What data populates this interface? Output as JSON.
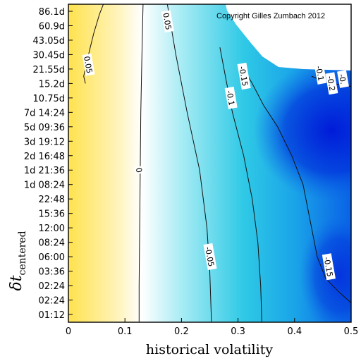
{
  "chart_data": {
    "type": "heatmap",
    "subtype": "filled-contour",
    "title": "",
    "copyright": "Copyright Gilles Zumbach 2012",
    "xlabel": "historical volatility",
    "ylabel_main": "δt",
    "ylabel_sub": "centered",
    "xlim": [
      0,
      0.5
    ],
    "x_ticks": [
      "0",
      "0.1",
      "0.2",
      "0.3",
      "0.4",
      "0.5"
    ],
    "y_tick_labels": [
      "01:12",
      "02:24",
      "02:24",
      "03:36",
      "06:00",
      "08:24",
      "12:00",
      "15:36",
      "22:48",
      "1d 08:24",
      "1d 21:36",
      "2d 16:48",
      "3d 19:12",
      "5d 09:36",
      "7d 14:24",
      "10.75d",
      "15.2d",
      "21.55d",
      "30.45d",
      "43.05d",
      "60.9d",
      "86.1d"
    ],
    "colorscale": [
      "#ffe04a",
      "#fff8d8",
      "#ffffff",
      "#9ee7f2",
      "#27c7e4",
      "#0c74e8",
      "#0018d8"
    ],
    "contour_levels": [
      0.05,
      0,
      -0.05,
      -0.1,
      -0.15,
      -0.2
    ],
    "contour_labels": [
      {
        "text": "0.05",
        "x": 0.035,
        "y": 17.3
      },
      {
        "text": "0.05",
        "x": 0.175,
        "y": 20.3
      },
      {
        "text": "0",
        "x": 0.125,
        "y": 10.0
      },
      {
        "text": "-0.05",
        "x": 0.25,
        "y": 4.0
      },
      {
        "text": "-0.1",
        "x": 0.287,
        "y": 15.0
      },
      {
        "text": "-0.15",
        "x": 0.31,
        "y": 16.5
      },
      {
        "text": "-0.15",
        "x": 0.46,
        "y": 3.3
      },
      {
        "text": "-0.1",
        "x": 0.445,
        "y": 16.7
      },
      {
        "text": "-0.2",
        "x": 0.465,
        "y": 16.0
      },
      {
        "text": "-0.",
        "x": 0.485,
        "y": 16.3
      }
    ],
    "contours": [
      {
        "level": 0.05,
        "points": [
          [
            0.062,
            21.5
          ],
          [
            0.055,
            20.8
          ],
          [
            0.045,
            19.5
          ],
          [
            0.038,
            18.4
          ],
          [
            0.032,
            17.4
          ],
          [
            0.027,
            16.5
          ],
          [
            0.03,
            16.0
          ]
        ]
      },
      {
        "level": 0,
        "points": [
          [
            0.132,
            21.5
          ],
          [
            0.13,
            18
          ],
          [
            0.128,
            14
          ],
          [
            0.127,
            10
          ],
          [
            0.126,
            6
          ],
          [
            0.125,
            2
          ],
          [
            0.125,
            -0.5
          ]
        ]
      },
      {
        "level": -0.05,
        "points": [
          [
            0.175,
            21.5
          ],
          [
            0.19,
            18
          ],
          [
            0.21,
            14
          ],
          [
            0.232,
            10
          ],
          [
            0.245,
            6
          ],
          [
            0.25,
            3
          ],
          [
            0.253,
            -0.5
          ]
        ]
      },
      {
        "level": -0.1,
        "points": [
          [
            0.268,
            18.5
          ],
          [
            0.28,
            16
          ],
          [
            0.29,
            14
          ],
          [
            0.31,
            11
          ],
          [
            0.325,
            8
          ],
          [
            0.335,
            5
          ],
          [
            0.34,
            2
          ],
          [
            0.342,
            -0.5
          ]
        ]
      },
      {
        "level": -0.15,
        "points": [
          [
            0.31,
            17
          ],
          [
            0.325,
            16
          ],
          [
            0.345,
            14.5
          ],
          [
            0.37,
            13
          ],
          [
            0.395,
            11
          ],
          [
            0.415,
            9
          ],
          [
            0.43,
            6
          ],
          [
            0.44,
            4
          ],
          [
            0.455,
            2.5
          ],
          [
            0.48,
            1.5
          ],
          [
            0.5,
            0.8
          ]
        ]
      },
      {
        "level": -0.2,
        "points": [
          [
            0.43,
            16.5
          ],
          [
            0.455,
            16.1
          ],
          [
            0.48,
            15.9
          ],
          [
            0.5,
            15.8
          ]
        ]
      }
    ]
  }
}
